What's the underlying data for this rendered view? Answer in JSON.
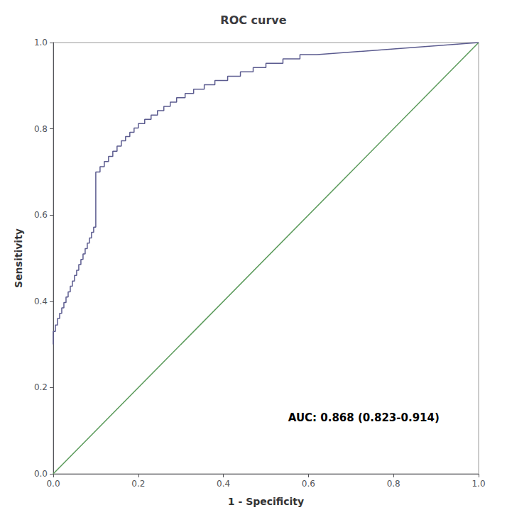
{
  "chart_data": {
    "type": "line",
    "title": "ROC curve",
    "x_label": "1 - Specificity",
    "y_label": "Sensitivity",
    "annotations": [
      "AUC: 0.868 (0.823-0.914)"
    ],
    "xlim": [
      0.0,
      1.0
    ],
    "ylim": [
      0.0,
      1.0
    ],
    "xticks": [
      {
        "value": 0.0,
        "label": "0.0"
      },
      0.2,
      0.4,
      0.6,
      0.8,
      {
        "value": 1.0,
        "label": "1.0"
      }
    ],
    "yticks": [
      {
        "value": 0.0,
        "label": "0.0"
      },
      0.2,
      0.4,
      0.6,
      0.8,
      {
        "value": 1.0,
        "label": "1.0"
      }
    ],
    "grid": false,
    "series": [
      {
        "color": "#5a9a5a",
        "x": [
          0,
          1
        ],
        "values": [
          0,
          1
        ]
      },
      {
        "color": "#5b5b8f",
        "x": [
          0.0,
          0.0,
          0.005,
          0.005,
          0.01,
          0.01,
          0.015,
          0.015,
          0.02,
          0.02,
          0.025,
          0.025,
          0.03,
          0.03,
          0.035,
          0.035,
          0.04,
          0.04,
          0.045,
          0.045,
          0.05,
          0.05,
          0.055,
          0.055,
          0.06,
          0.06,
          0.065,
          0.065,
          0.07,
          0.07,
          0.075,
          0.075,
          0.08,
          0.08,
          0.085,
          0.085,
          0.09,
          0.09,
          0.095,
          0.095,
          0.1,
          0.1,
          0.11,
          0.11,
          0.12,
          0.12,
          0.13,
          0.13,
          0.14,
          0.14,
          0.15,
          0.15,
          0.16,
          0.16,
          0.17,
          0.17,
          0.18,
          0.18,
          0.19,
          0.19,
          0.2,
          0.2,
          0.215,
          0.215,
          0.23,
          0.23,
          0.245,
          0.245,
          0.26,
          0.26,
          0.275,
          0.275,
          0.29,
          0.29,
          0.31,
          0.31,
          0.33,
          0.33,
          0.355,
          0.355,
          0.38,
          0.38,
          0.41,
          0.41,
          0.44,
          0.44,
          0.47,
          0.47,
          0.5,
          0.5,
          0.54,
          0.54,
          0.58,
          0.58,
          0.62,
          1.0
        ],
        "values": [
          0.3,
          0.33,
          0.33,
          0.345,
          0.345,
          0.36,
          0.36,
          0.372,
          0.372,
          0.385,
          0.385,
          0.397,
          0.397,
          0.41,
          0.41,
          0.422,
          0.422,
          0.435,
          0.435,
          0.447,
          0.447,
          0.46,
          0.46,
          0.472,
          0.472,
          0.485,
          0.485,
          0.497,
          0.497,
          0.51,
          0.51,
          0.522,
          0.522,
          0.535,
          0.535,
          0.547,
          0.547,
          0.56,
          0.56,
          0.572,
          0.572,
          0.7,
          0.7,
          0.712,
          0.712,
          0.724,
          0.724,
          0.736,
          0.736,
          0.748,
          0.748,
          0.76,
          0.76,
          0.772,
          0.772,
          0.782,
          0.782,
          0.792,
          0.792,
          0.802,
          0.802,
          0.812,
          0.812,
          0.822,
          0.822,
          0.832,
          0.832,
          0.842,
          0.842,
          0.852,
          0.852,
          0.862,
          0.862,
          0.872,
          0.872,
          0.882,
          0.882,
          0.892,
          0.892,
          0.902,
          0.902,
          0.912,
          0.912,
          0.922,
          0.922,
          0.932,
          0.932,
          0.942,
          0.942,
          0.952,
          0.952,
          0.962,
          0.962,
          0.972,
          0.972,
          1.0
        ]
      }
    ]
  }
}
